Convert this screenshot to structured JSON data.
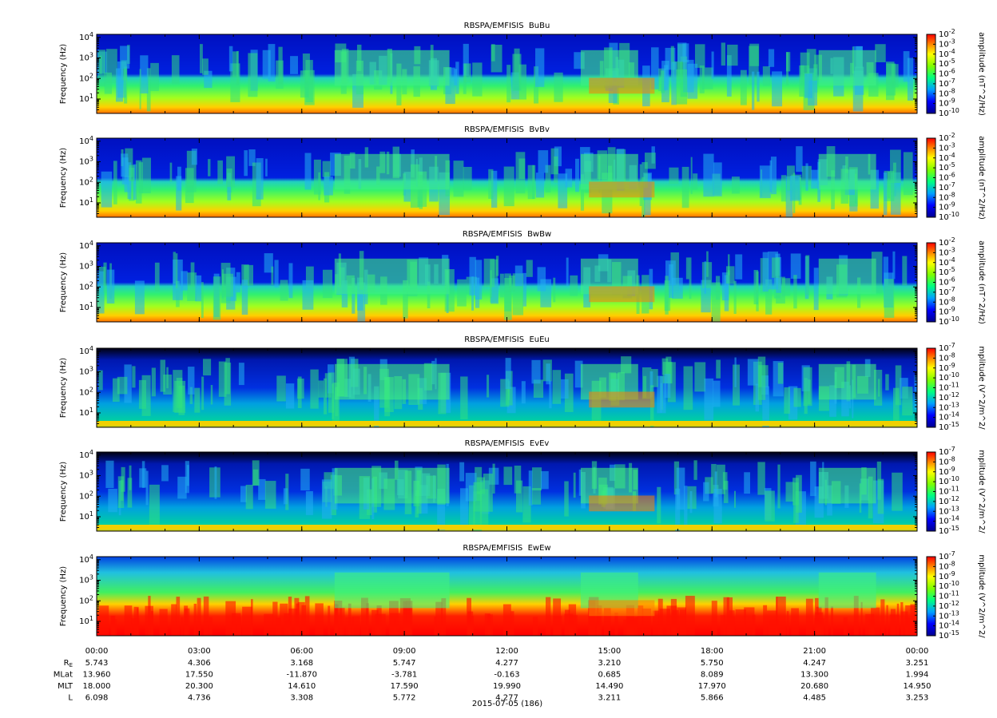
{
  "chart_data": [
    {
      "type": "spectrogram",
      "title": "RBSPA/EMFISIS  BuBu",
      "ylabel": "Frequency (Hz)",
      "log_y": true,
      "ylim": [
        2,
        14000
      ],
      "yticks": [
        {
          "value": 10,
          "base": "10",
          "exponent": "1"
        },
        {
          "value": 100,
          "base": "10",
          "exponent": "2"
        },
        {
          "value": 1000,
          "base": "10",
          "exponent": "3"
        },
        {
          "value": 10000,
          "base": "10",
          "exponent": "4"
        }
      ],
      "colorbar_label": "amplitude (nT^2/Hz)",
      "zlim": [
        1e-10,
        0.01
      ],
      "zticks": [
        {
          "value": 0.01,
          "base": "10",
          "exponent": "-2"
        },
        {
          "value": 0.001,
          "base": "10",
          "exponent": "-3"
        },
        {
          "value": 0.0001,
          "base": "10",
          "exponent": "-4"
        },
        {
          "value": 1e-05,
          "base": "10",
          "exponent": "-5"
        },
        {
          "value": 1e-06,
          "base": "10",
          "exponent": "-6"
        },
        {
          "value": 1e-07,
          "base": "10",
          "exponent": "-7"
        },
        {
          "value": 1e-08,
          "base": "10",
          "exponent": "-8"
        },
        {
          "value": 1e-09,
          "base": "10",
          "exponent": "-9"
        },
        {
          "value": 1e-10,
          "base": "10",
          "exponent": "-10"
        }
      ]
    },
    {
      "type": "spectrogram",
      "title": "RBSPA/EMFISIS  BvBv",
      "ylabel": "Frequency (Hz)",
      "log_y": true,
      "ylim": [
        2,
        14000
      ],
      "yticks": [
        {
          "value": 10,
          "base": "10",
          "exponent": "1"
        },
        {
          "value": 100,
          "base": "10",
          "exponent": "2"
        },
        {
          "value": 1000,
          "base": "10",
          "exponent": "3"
        },
        {
          "value": 10000,
          "base": "10",
          "exponent": "4"
        }
      ],
      "colorbar_label": "amplitude (nT^2/Hz)",
      "zlim": [
        1e-10,
        0.01
      ],
      "zticks": [
        {
          "value": 0.01,
          "base": "10",
          "exponent": "-2"
        },
        {
          "value": 0.001,
          "base": "10",
          "exponent": "-3"
        },
        {
          "value": 0.0001,
          "base": "10",
          "exponent": "-4"
        },
        {
          "value": 1e-05,
          "base": "10",
          "exponent": "-5"
        },
        {
          "value": 1e-06,
          "base": "10",
          "exponent": "-6"
        },
        {
          "value": 1e-07,
          "base": "10",
          "exponent": "-7"
        },
        {
          "value": 1e-08,
          "base": "10",
          "exponent": "-8"
        },
        {
          "value": 1e-09,
          "base": "10",
          "exponent": "-9"
        },
        {
          "value": 1e-10,
          "base": "10",
          "exponent": "-10"
        }
      ]
    },
    {
      "type": "spectrogram",
      "title": "RBSPA/EMFISIS  BwBw",
      "ylabel": "Frequency (Hz)",
      "log_y": true,
      "ylim": [
        2,
        14000
      ],
      "yticks": [
        {
          "value": 10,
          "base": "10",
          "exponent": "1"
        },
        {
          "value": 100,
          "base": "10",
          "exponent": "2"
        },
        {
          "value": 1000,
          "base": "10",
          "exponent": "3"
        },
        {
          "value": 10000,
          "base": "10",
          "exponent": "4"
        }
      ],
      "colorbar_label": "amplitude (nT^2/Hz)",
      "zlim": [
        1e-10,
        0.01
      ],
      "zticks": [
        {
          "value": 0.01,
          "base": "10",
          "exponent": "-2"
        },
        {
          "value": 0.001,
          "base": "10",
          "exponent": "-3"
        },
        {
          "value": 0.0001,
          "base": "10",
          "exponent": "-4"
        },
        {
          "value": 1e-05,
          "base": "10",
          "exponent": "-5"
        },
        {
          "value": 1e-06,
          "base": "10",
          "exponent": "-6"
        },
        {
          "value": 1e-07,
          "base": "10",
          "exponent": "-7"
        },
        {
          "value": 1e-08,
          "base": "10",
          "exponent": "-8"
        },
        {
          "value": 1e-09,
          "base": "10",
          "exponent": "-9"
        },
        {
          "value": 1e-10,
          "base": "10",
          "exponent": "-10"
        }
      ]
    },
    {
      "type": "spectrogram",
      "title": "RBSPA/EMFISIS  EuEu",
      "ylabel": "Frequency (Hz)",
      "log_y": true,
      "ylim": [
        2,
        14000
      ],
      "yticks": [
        {
          "value": 10,
          "base": "10",
          "exponent": "1"
        },
        {
          "value": 100,
          "base": "10",
          "exponent": "2"
        },
        {
          "value": 1000,
          "base": "10",
          "exponent": "3"
        },
        {
          "value": 10000,
          "base": "10",
          "exponent": "4"
        }
      ],
      "colorbar_label": "mplitude (V^2/m^2/",
      "zlim": [
        1e-15,
        1e-07
      ],
      "zticks": [
        {
          "value": 1e-07,
          "base": "10",
          "exponent": "-7"
        },
        {
          "value": 1e-08,
          "base": "10",
          "exponent": "-8"
        },
        {
          "value": 1e-09,
          "base": "10",
          "exponent": "-9"
        },
        {
          "value": 1e-10,
          "base": "10",
          "exponent": "-10"
        },
        {
          "value": 1e-11,
          "base": "10",
          "exponent": "-11"
        },
        {
          "value": 1e-12,
          "base": "10",
          "exponent": "-12"
        },
        {
          "value": 1e-13,
          "base": "10",
          "exponent": "-13"
        },
        {
          "value": 1e-14,
          "base": "10",
          "exponent": "-14"
        },
        {
          "value": 1e-15,
          "base": "10",
          "exponent": "-15"
        }
      ]
    },
    {
      "type": "spectrogram",
      "title": "RBSPA/EMFISIS  EvEv",
      "ylabel": "Frequency (Hz)",
      "log_y": true,
      "ylim": [
        2,
        14000
      ],
      "yticks": [
        {
          "value": 10,
          "base": "10",
          "exponent": "1"
        },
        {
          "value": 100,
          "base": "10",
          "exponent": "2"
        },
        {
          "value": 1000,
          "base": "10",
          "exponent": "3"
        },
        {
          "value": 10000,
          "base": "10",
          "exponent": "4"
        }
      ],
      "colorbar_label": "mplitude (V^2/m^2/",
      "zlim": [
        1e-15,
        1e-07
      ],
      "zticks": [
        {
          "value": 1e-07,
          "base": "10",
          "exponent": "-7"
        },
        {
          "value": 1e-08,
          "base": "10",
          "exponent": "-8"
        },
        {
          "value": 1e-09,
          "base": "10",
          "exponent": "-9"
        },
        {
          "value": 1e-10,
          "base": "10",
          "exponent": "-10"
        },
        {
          "value": 1e-11,
          "base": "10",
          "exponent": "-11"
        },
        {
          "value": 1e-12,
          "base": "10",
          "exponent": "-12"
        },
        {
          "value": 1e-13,
          "base": "10",
          "exponent": "-13"
        },
        {
          "value": 1e-14,
          "base": "10",
          "exponent": "-14"
        },
        {
          "value": 1e-15,
          "base": "10",
          "exponent": "-15"
        }
      ]
    },
    {
      "type": "spectrogram",
      "title": "RBSPA/EMFISIS  EwEw",
      "ylabel": "Frequency (Hz)",
      "log_y": true,
      "ylim": [
        2,
        14000
      ],
      "yticks": [
        {
          "value": 10,
          "base": "10",
          "exponent": "1"
        },
        {
          "value": 100,
          "base": "10",
          "exponent": "2"
        },
        {
          "value": 1000,
          "base": "10",
          "exponent": "3"
        },
        {
          "value": 10000,
          "base": "10",
          "exponent": "4"
        }
      ],
      "colorbar_label": "mplitude (V^2/m^2/",
      "zlim": [
        1e-15,
        1e-07
      ],
      "zticks": [
        {
          "value": 1e-07,
          "base": "10",
          "exponent": "-7"
        },
        {
          "value": 1e-08,
          "base": "10",
          "exponent": "-8"
        },
        {
          "value": 1e-09,
          "base": "10",
          "exponent": "-9"
        },
        {
          "value": 1e-10,
          "base": "10",
          "exponent": "-10"
        },
        {
          "value": 1e-11,
          "base": "10",
          "exponent": "-11"
        },
        {
          "value": 1e-12,
          "base": "10",
          "exponent": "-12"
        },
        {
          "value": 1e-13,
          "base": "10",
          "exponent": "-13"
        },
        {
          "value": 1e-14,
          "base": "10",
          "exponent": "-14"
        },
        {
          "value": 1e-15,
          "base": "10",
          "exponent": "-15"
        }
      ],
      "xlabel": "2015-07-05 (186)",
      "xlim": [
        0,
        24
      ],
      "xticks": [
        {
          "value": 0,
          "label": "00:00"
        },
        {
          "value": 3,
          "label": "03:00"
        },
        {
          "value": 6,
          "label": "06:00"
        },
        {
          "value": 9,
          "label": "09:00"
        },
        {
          "value": 12,
          "label": "12:00"
        },
        {
          "value": 15,
          "label": "15:00"
        },
        {
          "value": 18,
          "label": "18:00"
        },
        {
          "value": 21,
          "label": "21:00"
        },
        {
          "value": 24,
          "label": "00:00"
        }
      ],
      "ephemeris": [
        {
          "name": "R",
          "subscript": "E",
          "values": [
            "5.743",
            "4.306",
            "3.168",
            "5.747",
            "4.277",
            "3.210",
            "5.750",
            "4.247",
            "3.251"
          ]
        },
        {
          "name": "MLat",
          "values": [
            "13.960",
            "17.550",
            "-11.870",
            "-3.781",
            "-0.163",
            "0.685",
            "8.089",
            "13.300",
            "1.994"
          ]
        },
        {
          "name": "MLT",
          "values": [
            "18.000",
            "20.300",
            "14.610",
            "17.590",
            "19.990",
            "14.490",
            "17.970",
            "20.680",
            "14.950"
          ]
        },
        {
          "name": "L",
          "values": [
            "6.098",
            "4.736",
            "3.308",
            "5.772",
            "4.277",
            "3.211",
            "5.866",
            "4.485",
            "3.253"
          ]
        }
      ]
    }
  ]
}
